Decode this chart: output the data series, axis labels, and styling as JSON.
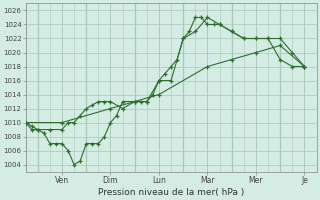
{
  "xlabel": "Pression niveau de la mer( hPa )",
  "bg_color": "#d4ece4",
  "grid_color": "#a8c8b8",
  "line_color": "#2d6e2d",
  "ylim": [
    1003,
    1027
  ],
  "yticks": [
    1004,
    1006,
    1008,
    1010,
    1012,
    1014,
    1016,
    1018,
    1020,
    1022,
    1024,
    1026
  ],
  "xlim": [
    0,
    24
  ],
  "day_positions": [
    3,
    7,
    11,
    15,
    19,
    23
  ],
  "day_labels": [
    "Ven",
    "Dim",
    "Lun",
    "Mar",
    "Mer",
    "Je"
  ],
  "vlines": [
    1,
    5,
    9,
    13,
    17,
    21
  ],
  "series1_x": [
    0,
    0.5,
    1,
    2,
    3,
    3.5,
    4,
    4.5,
    5,
    5.5,
    6,
    6.5,
    7,
    8,
    9,
    9.5,
    10,
    10.5,
    11,
    11.5,
    12,
    12.5,
    13,
    13.5,
    14,
    14.5,
    15,
    15.5,
    16,
    17,
    18,
    19,
    20,
    21,
    22,
    23
  ],
  "series1_y": [
    1010,
    1009.5,
    1009,
    1009,
    1009,
    1010,
    1010,
    1011,
    1012,
    1012.5,
    1013,
    1013,
    1013,
    1012,
    1013,
    1013,
    1013,
    1014,
    1016,
    1017,
    1018,
    1019,
    1022,
    1023,
    1025,
    1025,
    1024,
    1024,
    1024,
    1023,
    1022,
    1022,
    1022,
    1022,
    1020,
    1018
  ],
  "series2_x": [
    0,
    0.5,
    1,
    1.5,
    2,
    2.5,
    3,
    3.5,
    4,
    4.5,
    5,
    5.5,
    6,
    6.5,
    7,
    7.5,
    8,
    9,
    10,
    11,
    12,
    13,
    14,
    15,
    16,
    17,
    18,
    19,
    20,
    21,
    22,
    23
  ],
  "series2_y": [
    1010,
    1009,
    1009,
    1008.5,
    1007,
    1007,
    1007,
    1006,
    1004,
    1004.5,
    1007,
    1007,
    1007,
    1008,
    1010,
    1011,
    1013,
    1013,
    1013,
    1016,
    1016,
    1022,
    1023,
    1025,
    1024,
    1023,
    1022,
    1022,
    1022,
    1019,
    1018,
    1018
  ],
  "series3_x": [
    0,
    3,
    7,
    11,
    15,
    17,
    19,
    21,
    23
  ],
  "series3_y": [
    1010,
    1010,
    1012,
    1014,
    1018,
    1019,
    1020,
    1021,
    1018
  ]
}
